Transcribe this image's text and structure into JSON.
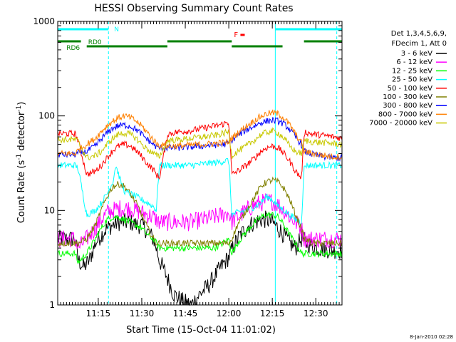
{
  "chart_data": {
    "type": "line",
    "title": "HESSI Observing Summary Count Rates",
    "xlabel": "Start Time (15-Oct-04 11:01:02)",
    "ylabel_main": "Count Rate (s",
    "ylabel_sup1": "-1",
    "ylabel_mid": " detector",
    "ylabel_sup2": "-1",
    "ylabel_end": ")",
    "yscale": "log",
    "ylim": [
      1,
      1000
    ],
    "xlim_min": [
      0,
      98
    ],
    "x_unit": "minutes after 11:01:02",
    "x_ticks": [
      {
        "t": 13.97,
        "label": "11:15"
      },
      {
        "t": 28.97,
        "label": "11:30"
      },
      {
        "t": 43.97,
        "label": "11:45"
      },
      {
        "t": 58.97,
        "label": "12:00"
      },
      {
        "t": 73.97,
        "label": "12:15"
      },
      {
        "t": 88.97,
        "label": "12:30"
      }
    ],
    "y_ticks": [
      {
        "v": 1,
        "label": "1"
      },
      {
        "v": 10,
        "label": "10"
      },
      {
        "v": 100,
        "label": "100"
      },
      {
        "v": 1000,
        "label": "1000"
      }
    ],
    "timestamp": "8-Jan-2010 02:28",
    "legend_header": [
      "Det 1,3,4,5,6,9,",
      "FDecim 1, Att 0"
    ],
    "series": [
      {
        "name": "3 - 6 keV",
        "color": "#000000",
        "t": [
          0,
          6,
          7,
          9,
          11,
          13,
          15,
          17,
          19,
          21,
          23,
          25,
          27,
          29,
          31,
          33,
          34,
          35,
          37,
          40,
          43,
          46,
          49,
          52,
          55,
          57,
          59,
          60,
          62,
          64,
          66,
          68,
          70,
          72,
          74,
          76,
          78,
          80,
          82,
          84,
          86,
          88,
          90,
          92,
          95,
          98
        ],
        "v": [
          5,
          5,
          3,
          2.5,
          3,
          4.5,
          5.5,
          6.5,
          7,
          7.5,
          7.5,
          7.5,
          7,
          7,
          6,
          5,
          4,
          3,
          2.2,
          1.3,
          1.1,
          1,
          1.3,
          1.6,
          2.2,
          2.7,
          3.2,
          3.8,
          5,
          6,
          7,
          7.5,
          8,
          8,
          7.5,
          6.5,
          5.5,
          4.5,
          4,
          5,
          4.5,
          4.2,
          4,
          3.9,
          3.8,
          3.8
        ]
      },
      {
        "name": "6 - 12 keV",
        "color": "#ff00ff",
        "t": [
          0,
          6,
          7,
          10,
          13,
          15,
          17,
          19,
          21,
          23,
          25,
          27,
          29,
          31,
          33,
          34,
          35,
          38,
          42,
          46,
          50,
          54,
          57,
          59,
          60,
          62,
          65,
          68,
          70,
          72,
          74,
          76,
          78,
          80,
          82,
          84,
          85,
          88,
          92,
          95,
          98
        ],
        "v": [
          5,
          5,
          4,
          5,
          6.5,
          8,
          9.5,
          10,
          10.5,
          10.5,
          10.5,
          10,
          9.5,
          9,
          8.5,
          8,
          7.5,
          7.5,
          7.5,
          7.5,
          8,
          8.5,
          9,
          9.5,
          7.5,
          8.5,
          10,
          11.5,
          12,
          12.5,
          12.5,
          11.5,
          10,
          8.5,
          7.5,
          6.5,
          5,
          5,
          5,
          5,
          5
        ]
      },
      {
        "name": "12 - 25 keV",
        "color": "#00ff00",
        "t": [
          0,
          6,
          7,
          10,
          13,
          15,
          17,
          19,
          21,
          23,
          25,
          27,
          29,
          31,
          33,
          34,
          35,
          38,
          42,
          46,
          50,
          54,
          57,
          59,
          60,
          62,
          65,
          68,
          70,
          72,
          74,
          76,
          78,
          80,
          82,
          84,
          85,
          88,
          92,
          95,
          98
        ],
        "v": [
          3.5,
          3.5,
          2.8,
          3.5,
          5,
          6.5,
          8,
          8.5,
          8.5,
          8,
          7.5,
          7,
          6.5,
          5.5,
          5,
          4.5,
          4,
          4,
          4,
          4,
          4,
          4,
          4.5,
          5,
          3.5,
          4.5,
          6,
          7.5,
          8.5,
          9,
          9,
          8.5,
          7,
          5.5,
          4.5,
          3.5,
          3.5,
          3.5,
          3.5,
          3.5,
          3.5
        ]
      },
      {
        "name": "25 - 50 keV",
        "color": "#00ffff",
        "t": [
          0,
          6,
          7,
          10,
          13,
          15,
          17,
          19,
          20,
          21,
          22,
          23,
          25,
          27,
          29,
          31,
          33,
          34,
          35,
          38,
          42,
          46,
          50,
          54,
          57,
          59,
          60,
          62,
          65,
          68,
          70,
          72,
          74,
          76,
          78,
          80,
          82,
          84,
          85,
          88,
          92,
          95,
          98
        ],
        "v": [
          30,
          30,
          28,
          9,
          10,
          12,
          15,
          20,
          30,
          24,
          19,
          16,
          15,
          14,
          13,
          12,
          11,
          10,
          30,
          30,
          30,
          30,
          31,
          32,
          33,
          34,
          9,
          9.5,
          10,
          11,
          12,
          14,
          13,
          11,
          10,
          9,
          8,
          7.5,
          30,
          30,
          30,
          30,
          30
        ]
      },
      {
        "name": "50 - 100 keV",
        "color": "#ff0000",
        "t": [
          0,
          6,
          7,
          10,
          13,
          15,
          17,
          19,
          21,
          23,
          25,
          27,
          29,
          31,
          33,
          34,
          35,
          38,
          42,
          46,
          50,
          54,
          57,
          59,
          60,
          62,
          65,
          68,
          70,
          72,
          74,
          76,
          78,
          80,
          82,
          84,
          85,
          88,
          92,
          95,
          98
        ],
        "v": [
          65,
          65,
          55,
          24,
          26,
          30,
          36,
          43,
          48,
          50,
          48,
          43,
          37,
          31,
          27,
          24,
          22,
          65,
          68,
          70,
          74,
          78,
          82,
          86,
          24,
          26,
          30,
          36,
          42,
          46,
          48,
          46,
          40,
          33,
          26,
          22,
          68,
          64,
          62,
          60,
          58
        ]
      },
      {
        "name": "100 - 300 keV",
        "color": "#808000",
        "t": [
          0,
          6,
          7,
          10,
          13,
          15,
          17,
          19,
          21,
          23,
          25,
          27,
          29,
          31,
          33,
          34,
          35,
          38,
          42,
          46,
          50,
          54,
          57,
          59,
          60,
          62,
          65,
          68,
          70,
          72,
          74,
          76,
          78,
          80,
          82,
          84,
          85,
          88,
          92,
          95,
          98
        ],
        "v": [
          4.5,
          4.5,
          4.5,
          5,
          7,
          10,
          14,
          18,
          19,
          18,
          15,
          12,
          9,
          6.5,
          5,
          4.5,
          4.5,
          4.5,
          4.5,
          4.5,
          4.5,
          4.5,
          4.5,
          4.5,
          5,
          7,
          10,
          14,
          18,
          20,
          21,
          20,
          17,
          13,
          9,
          6.5,
          5,
          4.5,
          4.5,
          4.5,
          4.5
        ]
      },
      {
        "name": "300 - 800 keV",
        "color": "#0000ff",
        "t": [
          0,
          6,
          7,
          10,
          13,
          15,
          17,
          19,
          21,
          23,
          25,
          27,
          29,
          31,
          33,
          34,
          35,
          38,
          42,
          46,
          50,
          54,
          57,
          59,
          60,
          62,
          65,
          68,
          70,
          72,
          74,
          76,
          78,
          80,
          82,
          84,
          85,
          88,
          92,
          95,
          98
        ],
        "v": [
          39,
          39,
          40,
          42,
          48,
          57,
          66,
          74,
          79,
          80,
          78,
          72,
          64,
          56,
          50,
          47,
          46,
          46,
          46,
          47,
          48,
          49,
          50,
          51,
          55,
          62,
          71,
          79,
          85,
          88,
          90,
          88,
          82,
          72,
          60,
          50,
          42,
          39,
          37,
          36,
          36
        ]
      },
      {
        "name": "800 - 7000 keV",
        "color": "#ff8000",
        "t": [
          0,
          6,
          7,
          10,
          13,
          15,
          17,
          19,
          21,
          23,
          25,
          27,
          29,
          31,
          33,
          34,
          35,
          38,
          42,
          46,
          50,
          54,
          57,
          59,
          60,
          62,
          65,
          68,
          70,
          72,
          74,
          76,
          78,
          80,
          82,
          84,
          85,
          88,
          92,
          95,
          98
        ],
        "v": [
          40,
          40,
          43,
          50,
          58,
          68,
          79,
          88,
          96,
          100,
          96,
          88,
          78,
          66,
          56,
          51,
          49,
          48,
          48,
          49,
          50,
          51,
          52,
          53,
          58,
          66,
          78,
          90,
          99,
          105,
          108,
          105,
          95,
          80,
          64,
          52,
          42,
          40,
          38,
          37,
          37
        ]
      },
      {
        "name": "7000 - 20000 keV",
        "color": "#c8c800",
        "t": [
          0,
          6,
          7,
          10,
          13,
          15,
          17,
          19,
          21,
          23,
          25,
          27,
          29,
          31,
          33,
          34,
          35,
          38,
          42,
          46,
          50,
          54,
          57,
          59,
          60,
          62,
          65,
          68,
          70,
          72,
          74,
          76,
          78,
          80,
          82,
          84,
          85,
          88,
          92,
          95,
          98
        ],
        "v": [
          56,
          56,
          54,
          36,
          38,
          42,
          50,
          58,
          64,
          66,
          64,
          58,
          50,
          44,
          40,
          38,
          37,
          55,
          56,
          58,
          60,
          62,
          65,
          68,
          38,
          42,
          48,
          56,
          63,
          67,
          69,
          66,
          58,
          48,
          42,
          40,
          55,
          53,
          52,
          51,
          50
        ]
      }
    ],
    "annotations": {
      "attenuator_label": "N",
      "flare_label": "F",
      "rd0_label": "RD0",
      "rd6_label": "RD6",
      "cyan_bars": [
        [
          0,
          17.5
        ],
        [
          75,
          98
        ]
      ],
      "red_bar": [
        62,
        63
      ],
      "green_segments_upper": [
        [
          0,
          8
        ],
        [
          37.8,
          60
        ],
        [
          84.9,
          98
        ]
      ],
      "green_segments_lower": [
        [
          10,
          37.8
        ],
        [
          60,
          77.5
        ]
      ],
      "cyan_solid_lines": [
        0,
        75
      ],
      "cyan_dashed_lines": [
        17.5,
        96.2
      ]
    }
  }
}
